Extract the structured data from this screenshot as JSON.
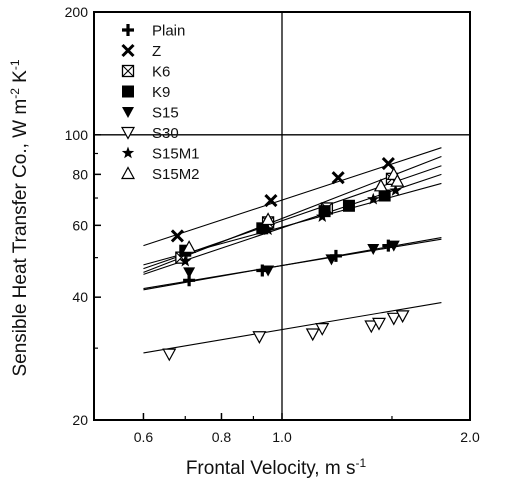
{
  "chart_data": {
    "type": "scatter",
    "xlabel": "Frontal Velocity, m s",
    "xlabel_sup": "-1",
    "ylabel": "Sensible Heat Transfer Co., W m",
    "ylabel_sup1": "-2",
    "ylabel_mid": " K",
    "ylabel_sup2": "-1",
    "x_scale": "log",
    "y_scale": "log",
    "xlim": [
      0.5,
      2.0
    ],
    "ylim": [
      20,
      200
    ],
    "x_ticks": [
      {
        "value": 0.6,
        "label": "0.6"
      },
      {
        "value": 0.8,
        "label": "0.8"
      },
      {
        "value": 1.0,
        "label": "1.0"
      },
      {
        "value": 2.0,
        "label": "2.0"
      }
    ],
    "y_ticks": [
      {
        "value": 20,
        "label": "20"
      },
      {
        "value": 40,
        "label": "40"
      },
      {
        "value": 60,
        "label": "60"
      },
      {
        "value": 80,
        "label": "80"
      },
      {
        "value": 100,
        "label": "100"
      },
      {
        "value": 200,
        "label": "200"
      }
    ],
    "reference_lines": {
      "x": 1.0,
      "y": 100
    },
    "legend_position": "top-left",
    "series": [
      {
        "name": "Plain",
        "marker": "plus",
        "points": [
          [
            0.71,
            44
          ],
          [
            0.93,
            46.5
          ],
          [
            1.22,
            50.5
          ],
          [
            1.48,
            53.5
          ]
        ],
        "fit": [
          [
            0.6,
            41.7
          ],
          [
            1.8,
            56
          ]
        ]
      },
      {
        "name": "Z",
        "marker": "cross",
        "points": [
          [
            0.68,
            56.5
          ],
          [
            0.96,
            69
          ],
          [
            1.23,
            78.5
          ],
          [
            1.48,
            85
          ]
        ],
        "fit": [
          [
            0.6,
            53.5
          ],
          [
            1.8,
            93
          ]
        ]
      },
      {
        "name": "K6",
        "marker": "box-x",
        "points": [
          [
            0.69,
            50
          ],
          [
            0.95,
            61
          ],
          [
            1.18,
            66
          ],
          [
            1.5,
            78
          ]
        ],
        "fit": [
          [
            0.6,
            47
          ],
          [
            1.8,
            84
          ]
        ]
      },
      {
        "name": "K9",
        "marker": "square",
        "points": [
          [
            0.7,
            52
          ],
          [
            0.93,
            59
          ],
          [
            1.17,
            65
          ],
          [
            1.28,
            67
          ],
          [
            1.46,
            71
          ]
        ],
        "fit": [
          [
            0.6,
            48
          ],
          [
            1.8,
            76
          ]
        ]
      },
      {
        "name": "S15",
        "marker": "triangle-down",
        "points": [
          [
            0.71,
            46
          ],
          [
            0.95,
            46.5
          ],
          [
            1.2,
            49.5
          ],
          [
            1.4,
            52.5
          ],
          [
            1.51,
            53.5
          ]
        ],
        "fit": [
          [
            0.6,
            42
          ],
          [
            1.8,
            55.5
          ]
        ]
      },
      {
        "name": "S30",
        "marker": "triangle-down-open",
        "points": [
          [
            0.66,
            29
          ],
          [
            0.92,
            32
          ],
          [
            1.12,
            32.5
          ],
          [
            1.16,
            33.5
          ],
          [
            1.39,
            34
          ],
          [
            1.43,
            34.5
          ],
          [
            1.51,
            35.5
          ],
          [
            1.56,
            36
          ]
        ],
        "fit": [
          [
            0.6,
            29.2
          ],
          [
            1.8,
            38.8
          ]
        ]
      },
      {
        "name": "S15M1",
        "marker": "star",
        "points": [
          [
            0.7,
            49
          ],
          [
            0.95,
            58.5
          ],
          [
            1.16,
            63
          ],
          [
            1.4,
            69.5
          ],
          [
            1.52,
            73
          ]
        ],
        "fit": [
          [
            0.6,
            45.5
          ],
          [
            1.8,
            80
          ]
        ]
      },
      {
        "name": "S15M2",
        "marker": "triangle-up-open",
        "points": [
          [
            0.71,
            53
          ],
          [
            0.95,
            62
          ],
          [
            1.44,
            75
          ],
          [
            1.51,
            80
          ],
          [
            1.53,
            77
          ]
        ],
        "fit": [
          [
            0.6,
            46
          ],
          [
            1.8,
            88.5
          ]
        ]
      }
    ]
  }
}
